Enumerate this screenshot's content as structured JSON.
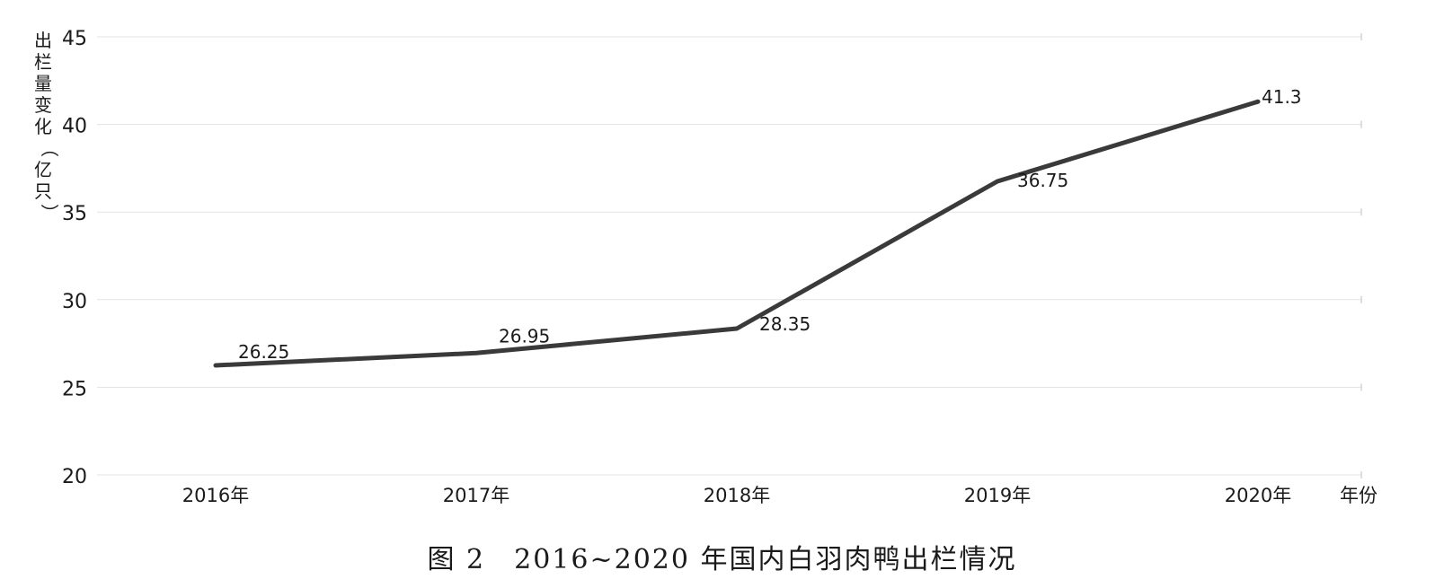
{
  "chart_data": {
    "type": "line",
    "title": "",
    "caption": "图 2　2016~2020 年国内白羽肉鸭出栏情况",
    "xlabel": "年份",
    "ylabel": "出栏量变化（亿只）",
    "categories": [
      "2016年",
      "2017年",
      "2018年",
      "2019年",
      "2020年"
    ],
    "values": [
      26.25,
      26.95,
      28.35,
      36.75,
      41.3
    ],
    "data_labels": [
      "26.25",
      "26.95",
      "28.35",
      "36.75",
      "41.3"
    ],
    "ylim": [
      20,
      45
    ],
    "yticks": [
      20,
      25,
      30,
      35,
      40,
      45
    ],
    "ytick_labels": [
      "20",
      "25",
      "30",
      "35",
      "40",
      "45"
    ],
    "grid": true,
    "legend": "none",
    "colors": {
      "line": "#3a3a3a",
      "grid": "#e3e3e3",
      "text": "#1a1a1a"
    }
  }
}
